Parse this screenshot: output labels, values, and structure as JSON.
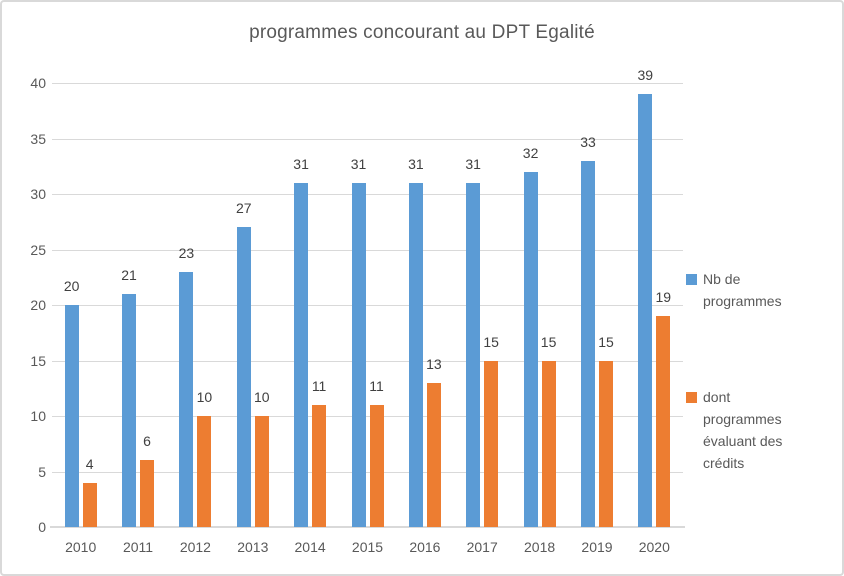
{
  "chart_data": {
    "type": "bar",
    "title": "programmes concourant au DPT Egalité",
    "categories": [
      "2010",
      "2011",
      "2012",
      "2013",
      "2014",
      "2015",
      "2016",
      "2017",
      "2018",
      "2019",
      "2020"
    ],
    "series": [
      {
        "name": "Nb de programmes",
        "color": "#5B9BD5",
        "values": [
          20,
          21,
          23,
          27,
          31,
          31,
          31,
          31,
          32,
          33,
          39
        ]
      },
      {
        "name": "dont programmes évaluant des crédits",
        "color": "#ED7D31",
        "values": [
          4,
          6,
          10,
          10,
          11,
          11,
          13,
          15,
          15,
          15,
          19
        ]
      }
    ],
    "xlabel": "",
    "ylabel": "",
    "ylim": [
      0,
      40
    ],
    "yticks": [
      0,
      5,
      10,
      15,
      20,
      25,
      30,
      35,
      40
    ],
    "grid": true,
    "data_labels": true,
    "legend_position": "right",
    "colors": {
      "grid": "#D9D9D9",
      "axis": "#D9D9D9",
      "tick_text": "#595959",
      "value_text": "#404040",
      "title_text": "#595959"
    }
  }
}
